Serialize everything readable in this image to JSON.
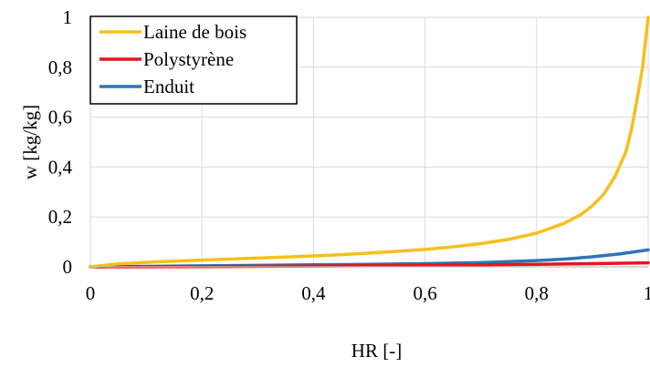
{
  "chart_data": {
    "type": "line",
    "xlabel": "HR [-]",
    "ylabel": "w [kg/kg]",
    "xlim": [
      0,
      1
    ],
    "ylim": [
      0,
      1
    ],
    "x_ticks": [
      "0",
      "0,2",
      "0,4",
      "0,6",
      "0,8",
      "1"
    ],
    "y_ticks": [
      "0",
      "0,2",
      "0,4",
      "0,6",
      "0,8",
      "1"
    ],
    "grid": true,
    "legend_position": "top-left",
    "series": [
      {
        "name": "Laine de bois",
        "color": "#F5C01C",
        "points": [
          [
            0,
            0
          ],
          [
            0.05,
            0.012
          ],
          [
            0.1,
            0.018
          ],
          [
            0.15,
            0.023
          ],
          [
            0.2,
            0.027
          ],
          [
            0.25,
            0.031
          ],
          [
            0.3,
            0.035
          ],
          [
            0.35,
            0.039
          ],
          [
            0.4,
            0.044
          ],
          [
            0.45,
            0.049
          ],
          [
            0.5,
            0.055
          ],
          [
            0.55,
            0.062
          ],
          [
            0.6,
            0.07
          ],
          [
            0.65,
            0.08
          ],
          [
            0.7,
            0.093
          ],
          [
            0.75,
            0.11
          ],
          [
            0.8,
            0.135
          ],
          [
            0.85,
            0.175
          ],
          [
            0.88,
            0.21
          ],
          [
            0.9,
            0.245
          ],
          [
            0.92,
            0.29
          ],
          [
            0.94,
            0.36
          ],
          [
            0.96,
            0.46
          ],
          [
            0.97,
            0.55
          ],
          [
            0.98,
            0.67
          ],
          [
            0.99,
            0.8
          ],
          [
            1.0,
            1.0
          ]
        ]
      },
      {
        "name": "Polystyrène",
        "color": "#E8141C",
        "points": [
          [
            0,
            0
          ],
          [
            0.2,
            0.001
          ],
          [
            0.4,
            0.003
          ],
          [
            0.6,
            0.006
          ],
          [
            0.8,
            0.01
          ],
          [
            0.9,
            0.013
          ],
          [
            1.0,
            0.016
          ]
        ]
      },
      {
        "name": "Enduit",
        "color": "#2E75B6",
        "points": [
          [
            0,
            0
          ],
          [
            0.1,
            0.002
          ],
          [
            0.2,
            0.004
          ],
          [
            0.3,
            0.006
          ],
          [
            0.4,
            0.008
          ],
          [
            0.5,
            0.01
          ],
          [
            0.6,
            0.013
          ],
          [
            0.7,
            0.017
          ],
          [
            0.8,
            0.025
          ],
          [
            0.85,
            0.031
          ],
          [
            0.9,
            0.04
          ],
          [
            0.95,
            0.052
          ],
          [
            1.0,
            0.068
          ]
        ]
      }
    ]
  }
}
